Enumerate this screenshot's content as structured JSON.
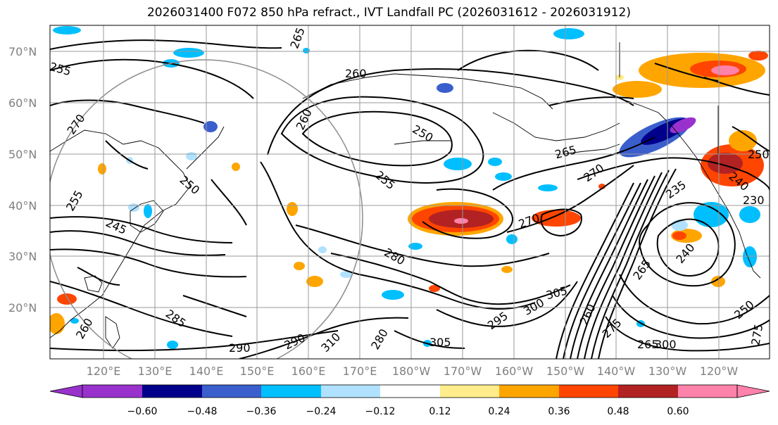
{
  "title": "2026031400 F072 850 hPa refract., IVT Landfall PC (2026031612 - 2026031912)",
  "lat_labels": [
    "70°N",
    "60°N",
    "50°N",
    "40°N",
    "30°N",
    "20°N"
  ],
  "lon_labels": [
    "120°E",
    "130°E",
    "140°E",
    "150°E",
    "160°E",
    "170°E",
    "180°W",
    "170°W",
    "160°W",
    "150°W",
    "140°W",
    "130°W",
    "120°W"
  ],
  "colorbar": {
    "ticks": [
      "−0.60",
      "−0.48",
      "−0.36",
      "−0.24",
      "−0.12",
      "0.12",
      "0.24",
      "0.36",
      "0.48",
      "0.60"
    ],
    "colors": [
      "#9932cc",
      "#00008b",
      "#3a5fcd",
      "#00bfff",
      "#b0e2ff",
      "#ffffff",
      "#ffec8b",
      "#ffa500",
      "#ff4500",
      "#b22222",
      "#ff82ab"
    ]
  },
  "contour_labels": [
    "265",
    "260",
    "255",
    "270",
    "260",
    "255",
    "250",
    "255",
    "265",
    "270",
    "270",
    "280",
    "235",
    "240",
    "245",
    "250",
    "285",
    "290",
    "290",
    "310",
    "305",
    "305",
    "300",
    "295",
    "280",
    "275",
    "260",
    "265",
    "250",
    "240",
    "230",
    "250",
    "260",
    "300",
    "275",
    "265"
  ]
}
